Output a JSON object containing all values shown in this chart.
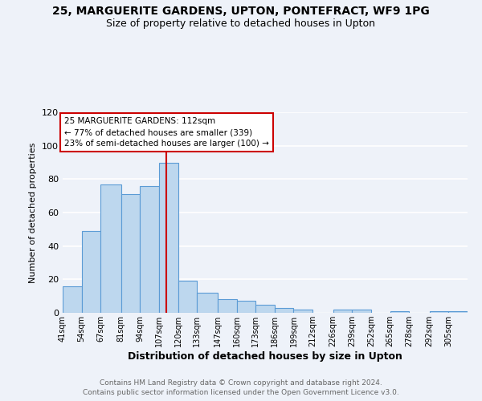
{
  "title1": "25, MARGUERITE GARDENS, UPTON, PONTEFRACT, WF9 1PG",
  "title2": "Size of property relative to detached houses in Upton",
  "xlabel": "Distribution of detached houses by size in Upton",
  "ylabel": "Number of detached properties",
  "bar_labels": [
    "41sqm",
    "54sqm",
    "67sqm",
    "81sqm",
    "94sqm",
    "107sqm",
    "120sqm",
    "133sqm",
    "147sqm",
    "160sqm",
    "173sqm",
    "186sqm",
    "199sqm",
    "212sqm",
    "226sqm",
    "239sqm",
    "252sqm",
    "265sqm",
    "278sqm",
    "292sqm",
    "305sqm"
  ],
  "bar_values": [
    16,
    49,
    77,
    71,
    76,
    90,
    19,
    12,
    8,
    7,
    5,
    3,
    2,
    0,
    2,
    2,
    0,
    1,
    0,
    1,
    1
  ],
  "bar_color": "#bdd7ee",
  "bar_edge_color": "#5b9bd5",
  "vline_x": 112,
  "bin_edges": [
    41,
    54,
    67,
    81,
    94,
    107,
    120,
    133,
    147,
    160,
    173,
    186,
    199,
    212,
    226,
    239,
    252,
    265,
    278,
    292,
    305,
    318
  ],
  "annotation_title": "25 MARGUERITE GARDENS: 112sqm",
  "annotation_line1": "← 77% of detached houses are smaller (339)",
  "annotation_line2": "23% of semi-detached houses are larger (100) →",
  "annotation_box_color": "#ffffff",
  "annotation_box_edge": "#cc0000",
  "vline_color": "#cc0000",
  "footer1": "Contains HM Land Registry data © Crown copyright and database right 2024.",
  "footer2": "Contains public sector information licensed under the Open Government Licence v3.0.",
  "ylim": [
    0,
    120
  ],
  "yticks": [
    0,
    20,
    40,
    60,
    80,
    100,
    120
  ],
  "bg_color": "#eef2f9",
  "plot_bg_color": "#eef2f9",
  "grid_color": "#ffffff",
  "title1_fontsize": 10,
  "title2_fontsize": 9
}
